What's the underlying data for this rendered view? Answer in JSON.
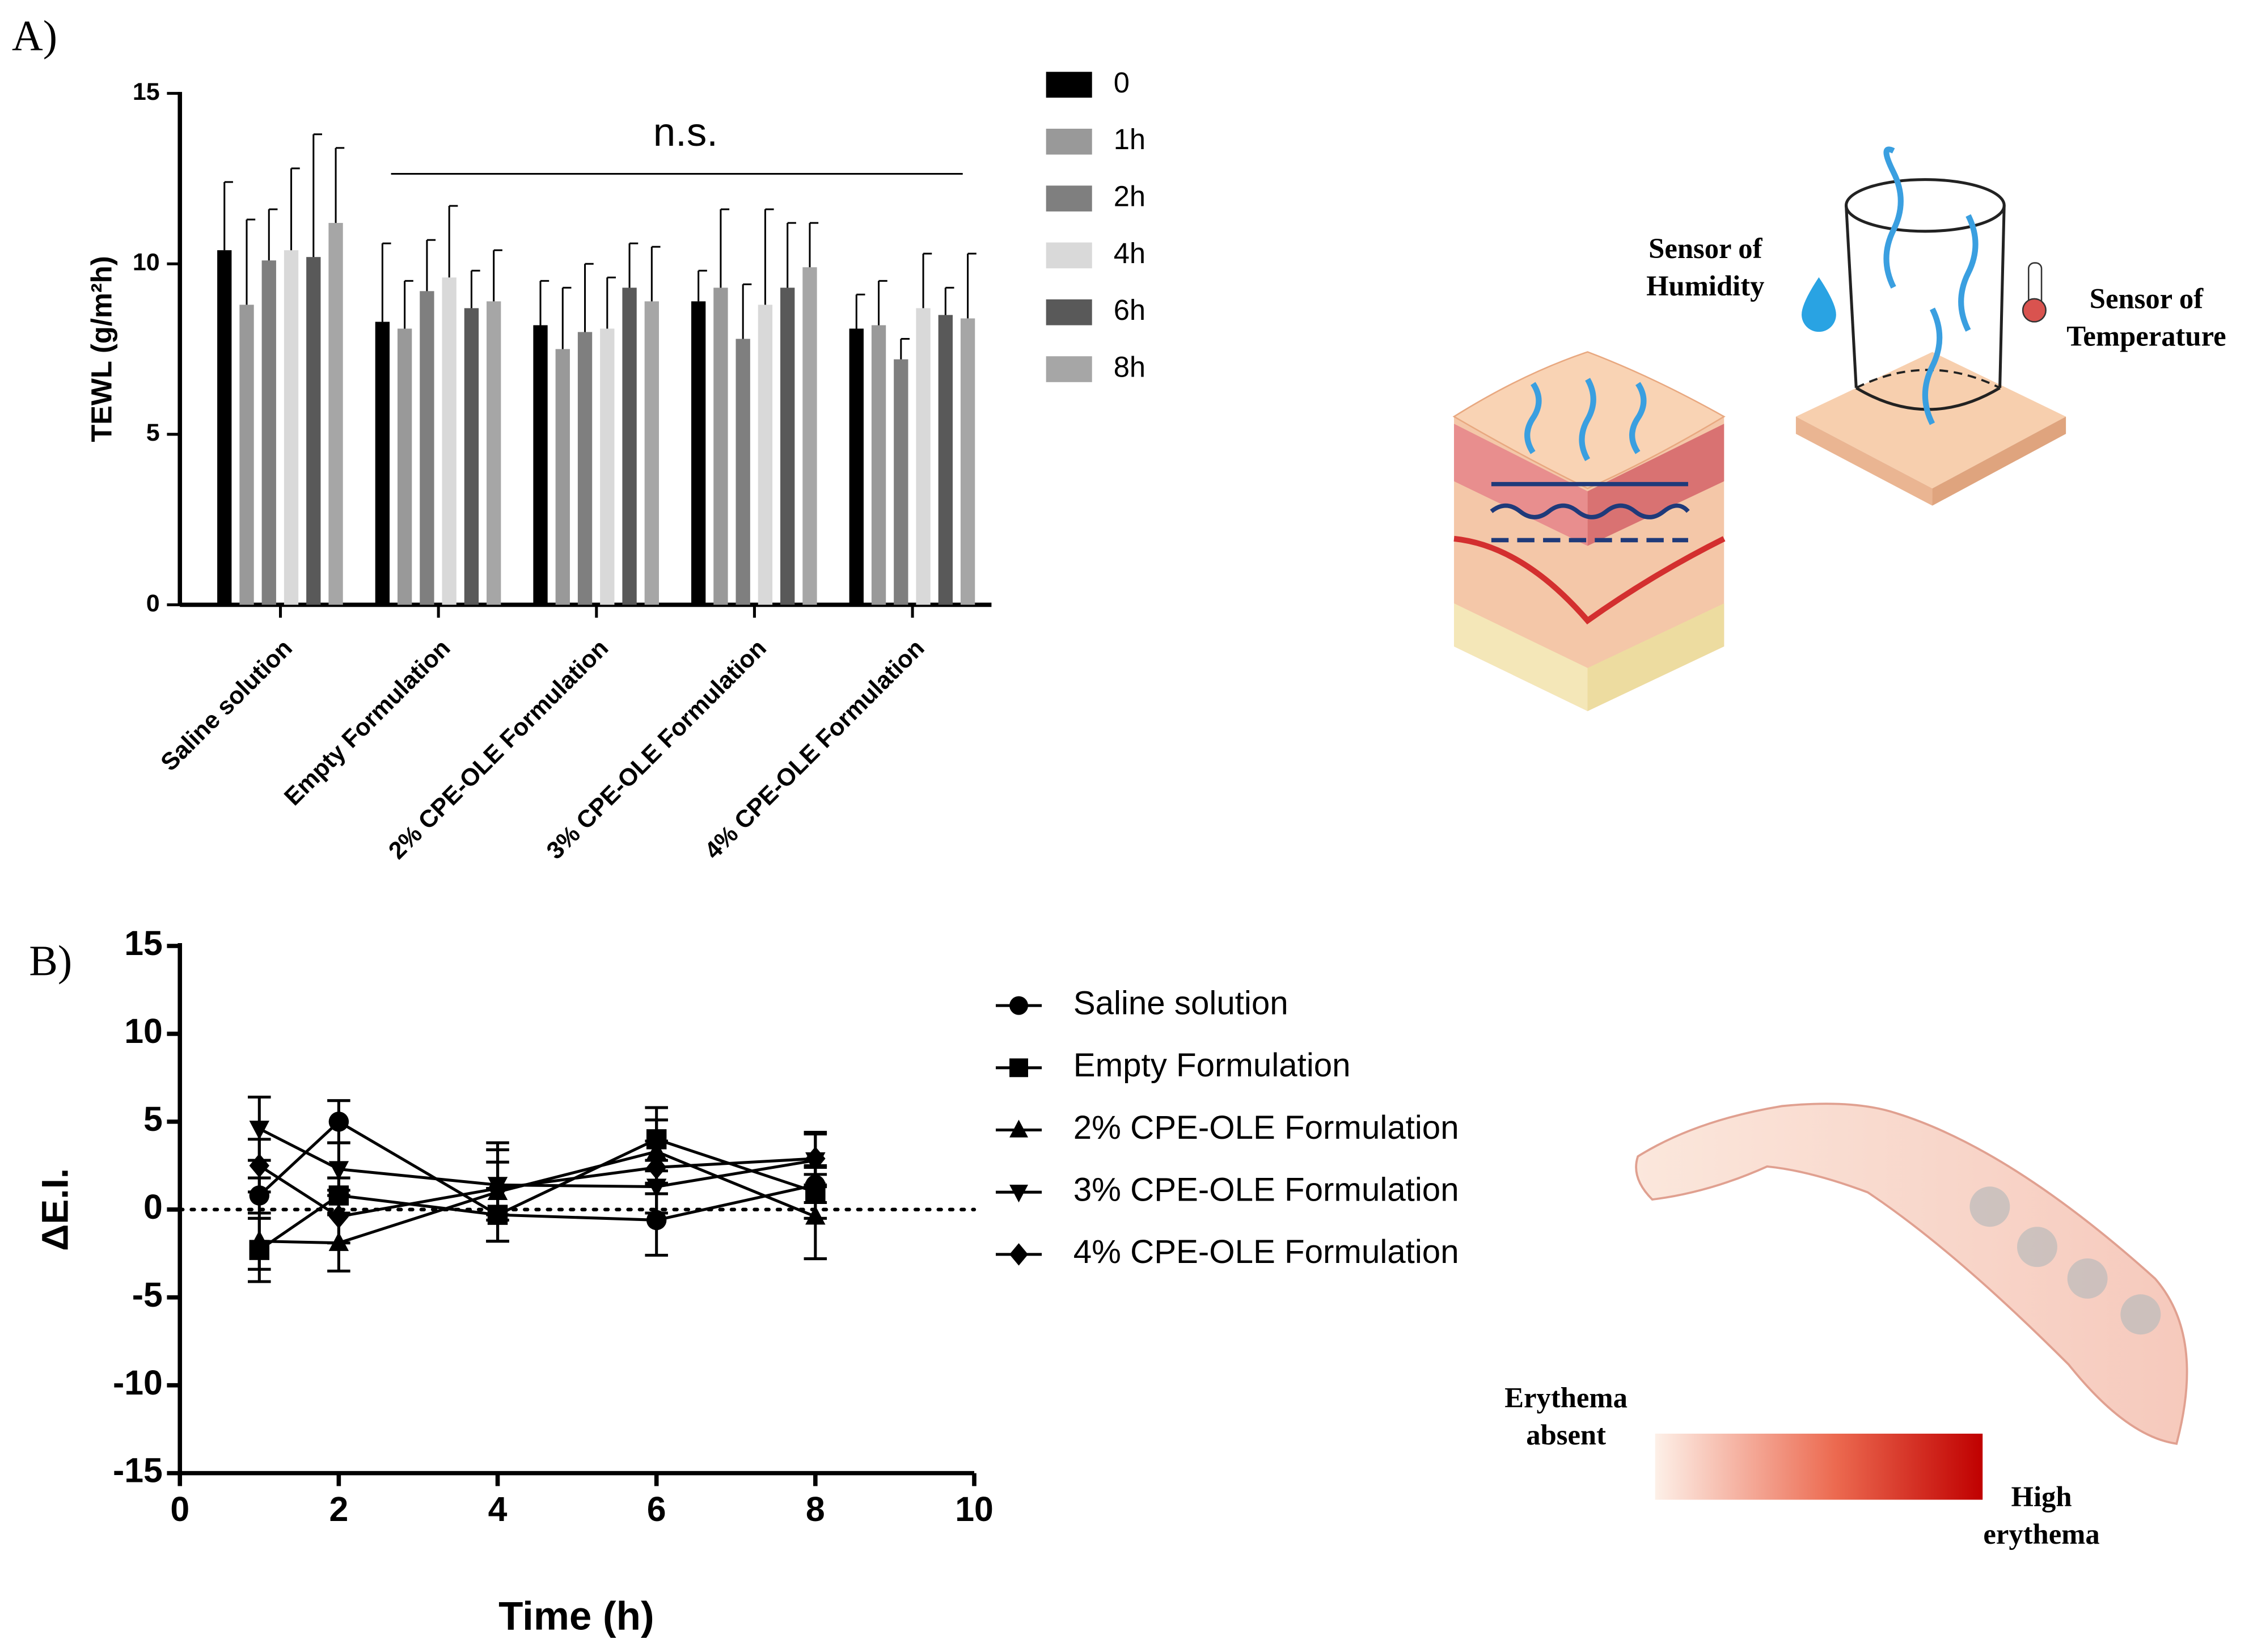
{
  "chart_data": [
    {
      "type": "bar",
      "panel_label": "A)",
      "ylabel": "TEWL (g/m²h)",
      "annotation": "n.s.",
      "categories": [
        "Saline solution",
        "Empty Formulation",
        "2% CPE-OLE Formulation",
        "3% CPE-OLE Formulation",
        "4% CPE-OLE Formulation"
      ],
      "series": [
        {
          "name": "0",
          "color": "#000000",
          "values": [
            10.4,
            8.3,
            8.2,
            8.9,
            8.1
          ],
          "errors": [
            2.0,
            2.3,
            1.3,
            0.9,
            1.0
          ]
        },
        {
          "name": "1h",
          "color": "#999999",
          "values": [
            8.8,
            8.1,
            7.5,
            9.3,
            8.2
          ],
          "errors": [
            2.5,
            1.4,
            1.8,
            2.3,
            1.3
          ]
        },
        {
          "name": "2h",
          "color": "#7f7f7f",
          "values": [
            10.1,
            9.2,
            8.0,
            7.8,
            7.2
          ],
          "errors": [
            1.5,
            1.5,
            2.0,
            1.6,
            0.6
          ]
        },
        {
          "name": "4h",
          "color": "#d9d9d9",
          "values": [
            10.4,
            9.6,
            8.1,
            8.8,
            8.7
          ],
          "errors": [
            2.4,
            2.1,
            1.5,
            2.8,
            1.6
          ]
        },
        {
          "name": "6h",
          "color": "#595959",
          "values": [
            10.2,
            8.7,
            9.3,
            9.3,
            8.5
          ],
          "errors": [
            3.6,
            1.1,
            1.3,
            1.9,
            0.8
          ]
        },
        {
          "name": "8h",
          "color": "#a6a6a6",
          "values": [
            11.2,
            8.9,
            8.9,
            9.9,
            8.4
          ],
          "errors": [
            2.2,
            1.5,
            1.6,
            1.3,
            1.9
          ]
        }
      ],
      "ylim": [
        0,
        15
      ],
      "yticks": [
        0,
        5,
        10,
        15
      ]
    },
    {
      "type": "line",
      "panel_label": "B)",
      "xlabel": "Time (h)",
      "ylabel": "ΔE.I.",
      "x": [
        1,
        2,
        4,
        6,
        8
      ],
      "series": [
        {
          "name": "Saline solution",
          "color": "#000000",
          "marker": "circle",
          "values": [
            0.8,
            5.0,
            -0.3,
            -0.6,
            1.4
          ],
          "errors": [
            1.0,
            1.2,
            1.5,
            2.0,
            1.0
          ]
        },
        {
          "name": "Empty Formulation",
          "color": "#000000",
          "marker": "square",
          "values": [
            -2.3,
            0.8,
            -0.3,
            4.0,
            1.0
          ],
          "errors": [
            1.8,
            1.0,
            1.5,
            1.8,
            1.5
          ]
        },
        {
          "name": "2% CPE-OLE Formulation",
          "color": "#000000",
          "marker": "triangle-up",
          "values": [
            -1.8,
            -1.9,
            1.0,
            3.3,
            -0.4
          ],
          "errors": [
            1.6,
            1.6,
            2.8,
            1.8,
            2.4
          ]
        },
        {
          "name": "3% CPE-OLE Formulation",
          "color": "#000000",
          "marker": "triangle-down",
          "values": [
            4.6,
            2.3,
            1.4,
            1.3,
            2.8
          ],
          "errors": [
            1.8,
            1.5,
            2.0,
            1.5,
            1.5
          ]
        },
        {
          "name": "4% CPE-OLE Formulation",
          "color": "#000000",
          "marker": "diamond",
          "values": [
            2.5,
            -0.4,
            1.2,
            2.4,
            2.9
          ],
          "errors": [
            1.5,
            1.5,
            1.5,
            1.5,
            1.5
          ]
        }
      ],
      "xlim": [
        0,
        10
      ],
      "xticks": [
        0,
        2,
        4,
        6,
        8,
        10
      ],
      "ylim": [
        -15,
        15
      ],
      "yticks": [
        -15,
        -10,
        -5,
        0,
        5,
        10,
        15
      ]
    }
  ],
  "illustration_labels": {
    "humidity_sensor": [
      "Sensor of",
      "Humidity"
    ],
    "temperature_sensor": [
      "Sensor of",
      "Temperature"
    ],
    "erythema_low": [
      "Erythema",
      "absent"
    ],
    "erythema_high": [
      "High",
      "erythema"
    ]
  }
}
